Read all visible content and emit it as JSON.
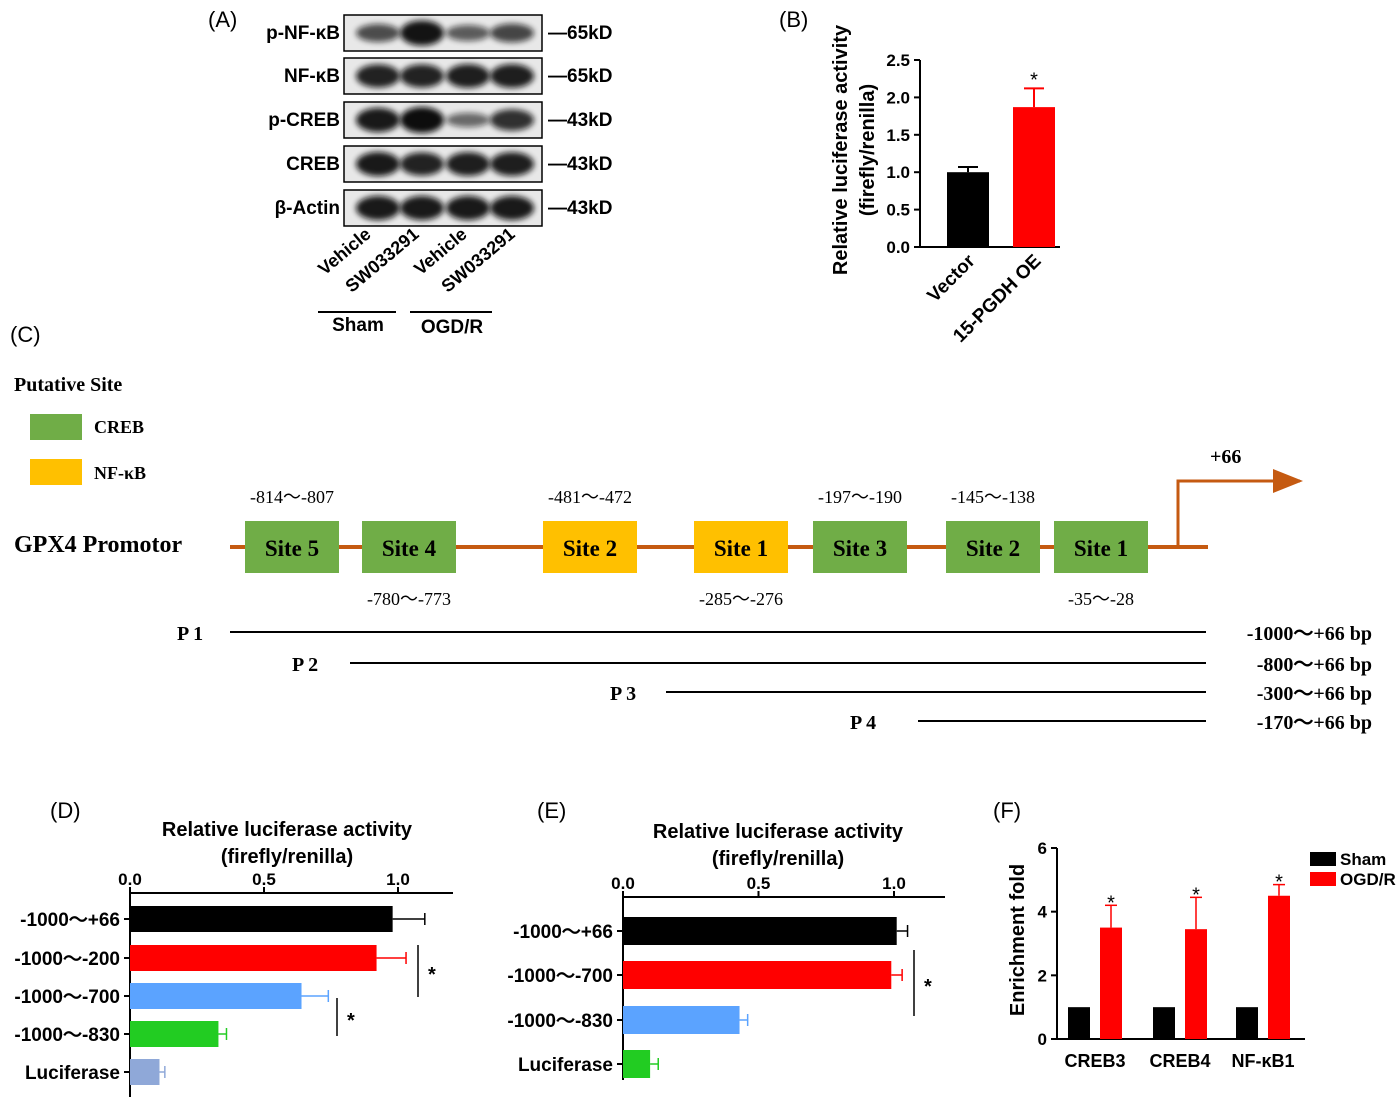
{
  "panel_labels": {
    "A": "(A)",
    "B": "(B)",
    "C": "(C)",
    "D": "(D)",
    "E": "(E)",
    "F": "(F)"
  },
  "western_blot": {
    "rows": [
      {
        "protein": "p-NF-κB",
        "size": "—65kD",
        "intensities": [
          0.55,
          0.95,
          0.45,
          0.6
        ]
      },
      {
        "protein": "NF-κB",
        "size": "—65kD",
        "intensities": [
          0.85,
          0.85,
          0.88,
          0.88
        ]
      },
      {
        "protein": "p-CREB",
        "size": "—43kD",
        "intensities": [
          0.9,
          1.0,
          0.35,
          0.75
        ]
      },
      {
        "protein": "CREB",
        "size": "—43kD",
        "intensities": [
          0.9,
          0.85,
          0.88,
          0.88
        ]
      },
      {
        "protein": "β-Actin",
        "size": "—43kD",
        "intensities": [
          0.9,
          0.9,
          0.9,
          0.9
        ]
      }
    ],
    "lanes": [
      "Vehicle",
      "SW033291",
      "Vehicle",
      "SW033291"
    ],
    "groups": [
      "Sham",
      "OGD/R"
    ]
  },
  "promoter": {
    "legend_title": "Putative Site",
    "legend": [
      {
        "label": "CREB",
        "color": "#70ad47"
      },
      {
        "label": "NF-κB",
        "color": "#ffc000"
      }
    ],
    "name": "GPX4 Promotor",
    "tss_label": "+66",
    "sites": [
      {
        "label": "Site 5",
        "type": "CREB",
        "range": "-814～-807",
        "range_pos": "top"
      },
      {
        "label": "Site 4",
        "type": "CREB",
        "range": "-780～-773",
        "range_pos": "bottom"
      },
      {
        "label": "Site 2",
        "type": "NF-κB",
        "range": "-481～-472",
        "range_pos": "top"
      },
      {
        "label": "Site 1",
        "type": "NF-κB",
        "range": "-285～-276",
        "range_pos": "bottom"
      },
      {
        "label": "Site 3",
        "type": "CREB",
        "range": "-197～-190",
        "range_pos": "top"
      },
      {
        "label": "Site 2",
        "type": "CREB",
        "range": "-145～-138",
        "range_pos": "top"
      },
      {
        "label": "Site 1",
        "type": "CREB",
        "range": "-35～-28",
        "range_pos": "bottom"
      }
    ],
    "constructs": [
      {
        "name": "P 1",
        "range": "-1000～+66 bp"
      },
      {
        "name": "P 2",
        "range": "-800～+66 bp"
      },
      {
        "name": "P 3",
        "range": "-300～+66 bp"
      },
      {
        "name": "P 4",
        "range": "-170～+66 bp"
      }
    ]
  },
  "chart_data": [
    {
      "panel": "B",
      "type": "bar",
      "categories": [
        "Vector",
        "15-PGDH OE"
      ],
      "values": [
        1.0,
        1.87
      ],
      "errors": [
        0.07,
        0.25
      ],
      "colors": [
        "#000000",
        "#ff0000"
      ],
      "significance": [
        "",
        "*"
      ],
      "ylabel": "Relative luciferase activity",
      "ylabel2": "(firefly/renilla)",
      "ylim": [
        0,
        2.5
      ],
      "yticks": [
        "0.0",
        "0.5",
        "1.0",
        "1.5",
        "2.0",
        "2.5"
      ]
    },
    {
      "panel": "D",
      "type": "bar",
      "orientation": "horizontal",
      "categories": [
        "-1000～+66",
        "-1000～-200",
        "-1000～-700",
        "-1000～-830",
        "Luciferase"
      ],
      "values": [
        0.98,
        0.92,
        0.64,
        0.33,
        0.11
      ],
      "errors": [
        0.12,
        0.11,
        0.1,
        0.03,
        0.02
      ],
      "colors": [
        "#000000",
        "#ff0000",
        "#5ba3ff",
        "#22cc22",
        "#8fa8d8"
      ],
      "title": "Relative luciferase activity",
      "title2": "(firefly/renilla)",
      "xlim": [
        0,
        1.2
      ],
      "xticks": [
        "0.0",
        "0.5",
        "1.0"
      ],
      "significance": [
        "*",
        "*"
      ]
    },
    {
      "panel": "E",
      "type": "bar",
      "orientation": "horizontal",
      "categories": [
        "-1000～+66",
        "-1000～-700",
        "-1000～-830",
        "Luciferase"
      ],
      "values": [
        1.01,
        0.99,
        0.43,
        0.1
      ],
      "errors": [
        0.04,
        0.04,
        0.03,
        0.03
      ],
      "colors": [
        "#000000",
        "#ff0000",
        "#5ba3ff",
        "#22cc22"
      ],
      "title": "Relative luciferase activity",
      "title2": "(firefly/renilla)",
      "xlim": [
        0,
        1.2
      ],
      "xticks": [
        "0.0",
        "0.5",
        "1.0"
      ],
      "significance": [
        "*"
      ]
    },
    {
      "panel": "F",
      "type": "bar",
      "categories": [
        "CREB3",
        "CREB4",
        "NF-κB1"
      ],
      "series": [
        {
          "name": "Sham",
          "values": [
            1.0,
            1.0,
            1.0
          ],
          "errors": [
            0,
            0,
            0
          ],
          "color": "#000000"
        },
        {
          "name": "OGD/R",
          "values": [
            3.5,
            3.45,
            4.5
          ],
          "errors": [
            0.7,
            1.0,
            0.35
          ],
          "color": "#ff0000"
        }
      ],
      "significance": [
        "*",
        "*",
        "*"
      ],
      "ylabel": "Enrichment fold",
      "ylim": [
        0,
        6
      ],
      "yticks": [
        "0",
        "2",
        "4",
        "6"
      ],
      "legend_position": "top-right"
    }
  ]
}
